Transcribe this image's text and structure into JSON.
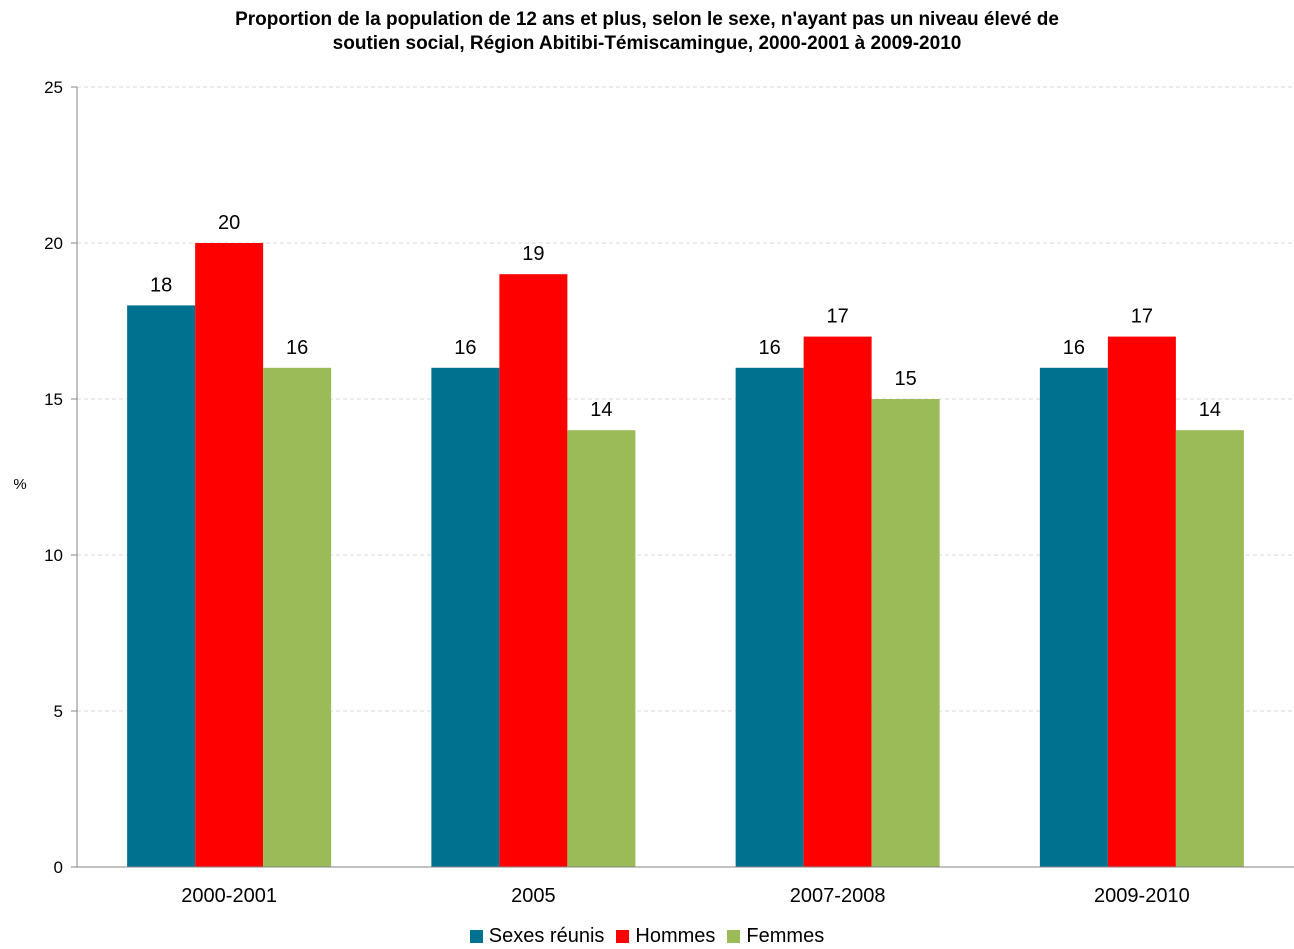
{
  "chart_data": {
    "type": "bar",
    "title_lines": [
      "Proportion de la population de 12 ans et plus, selon le sexe, n'ayant pas un niveau élevé de",
      "soutien social, Région Abitibi-Témiscamingue, 2000-2001 à 2009-2010"
    ],
    "xlabel": "",
    "ylabel": "%",
    "ylim": [
      0,
      25
    ],
    "yticks": [
      0,
      5,
      10,
      15,
      20,
      25
    ],
    "grid": true,
    "legend_position": "bottom",
    "categories": [
      "2000-2001",
      "2005",
      "2007-2008",
      "2009-2010"
    ],
    "series": [
      {
        "name": "Sexes réunis",
        "color": "#00728F",
        "values": [
          18,
          16,
          16,
          16
        ]
      },
      {
        "name": "Hommes",
        "color": "#FF0000",
        "values": [
          20,
          19,
          17,
          17
        ]
      },
      {
        "name": "Femmes",
        "color": "#9BBB59",
        "values": [
          16,
          14,
          15,
          14
        ]
      }
    ]
  }
}
